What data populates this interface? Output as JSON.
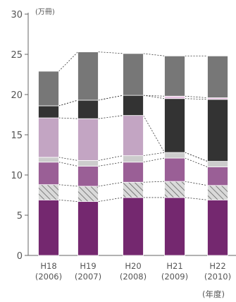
{
  "chart_data": {
    "type": "bar",
    "stacked": true,
    "unit_label": "(万冊)",
    "year_label": "(年度)",
    "ylim": [
      0,
      30
    ],
    "yticks": [
      0,
      5,
      10,
      15,
      20,
      25,
      30
    ],
    "grid": false,
    "categories": [
      {
        "line1": "H18",
        "line2": "(2006)"
      },
      {
        "line1": "H19",
        "line2": "(2007)"
      },
      {
        "line1": "H20",
        "line2": "(2008)"
      },
      {
        "line1": "H21",
        "line2": "(2009)"
      },
      {
        "line1": "H22",
        "line2": "(2010)"
      }
    ],
    "series": [
      {
        "color": "#74286f",
        "pattern": "solid",
        "values": [
          6.9,
          6.7,
          7.2,
          7.2,
          6.9
        ]
      },
      {
        "color": "#d4d4d4",
        "pattern": "hatch",
        "values": [
          1.9,
          1.9,
          1.9,
          2.0,
          1.8
        ]
      },
      {
        "color": "#9a5f96",
        "pattern": "solid",
        "values": [
          2.8,
          2.5,
          2.5,
          2.9,
          2.3
        ]
      },
      {
        "color": "#cccccc",
        "pattern": "solid",
        "values": [
          0.6,
          0.7,
          0.8,
          0.7,
          0.7
        ]
      },
      {
        "color": "#c3a5c3",
        "pattern": "solid",
        "values": [
          4.9,
          5.2,
          5.0,
          0.0,
          0.0
        ]
      },
      {
        "color": "#333333",
        "pattern": "solid",
        "values": [
          1.5,
          2.3,
          2.5,
          6.7,
          7.7
        ]
      },
      {
        "color": "#e6c0e0",
        "pattern": "solid",
        "values": [
          0.0,
          0.0,
          0.0,
          0.3,
          0.2
        ]
      },
      {
        "color": "#777777",
        "pattern": "solid",
        "values": [
          4.3,
          6.0,
          5.2,
          5.0,
          5.2
        ]
      }
    ]
  }
}
